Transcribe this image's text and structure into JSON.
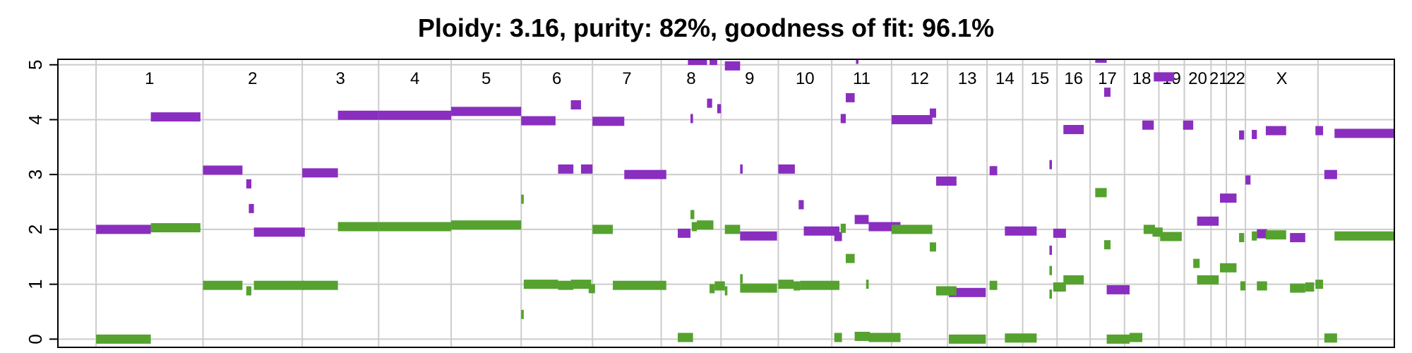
{
  "chart_data": {
    "type": "scatter",
    "title": "Ploidy: 3.16, purity: 82%, goodness of fit: 96.1%",
    "xlabel": "",
    "ylabel": "",
    "ylim": [
      -0.15,
      5.1
    ],
    "yticks": [
      "0",
      "1",
      "2",
      "3",
      "4",
      "5"
    ],
    "grid": true,
    "genome_range": [
      -3.0,
      102.0
    ],
    "chromosomes": [
      {
        "label": "1",
        "start": 0.0,
        "end": 8.4
      },
      {
        "label": "2",
        "start": 8.4,
        "end": 16.2
      },
      {
        "label": "3",
        "start": 16.2,
        "end": 22.2
      },
      {
        "label": "4",
        "start": 22.2,
        "end": 27.9
      },
      {
        "label": "5",
        "start": 27.9,
        "end": 33.4
      },
      {
        "label": "6",
        "start": 33.4,
        "end": 39.0
      },
      {
        "label": "7",
        "start": 39.0,
        "end": 44.4
      },
      {
        "label": "8",
        "start": 44.4,
        "end": 49.1
      },
      {
        "label": "9",
        "start": 49.1,
        "end": 53.6
      },
      {
        "label": "10",
        "start": 53.6,
        "end": 57.8
      },
      {
        "label": "11",
        "start": 57.8,
        "end": 62.5
      },
      {
        "label": "12",
        "start": 62.5,
        "end": 66.9
      },
      {
        "label": "13",
        "start": 66.9,
        "end": 70.0
      },
      {
        "label": "14",
        "start": 70.0,
        "end": 72.8
      },
      {
        "label": "15",
        "start": 72.8,
        "end": 75.5
      },
      {
        "label": "16",
        "start": 75.5,
        "end": 78.1
      },
      {
        "label": "17",
        "start": 78.1,
        "end": 80.8
      },
      {
        "label": "18",
        "start": 80.8,
        "end": 83.5
      },
      {
        "label": "19",
        "start": 83.5,
        "end": 85.5
      },
      {
        "label": "20",
        "start": 85.5,
        "end": 87.6
      },
      {
        "label": "21",
        "start": 87.6,
        "end": 88.8
      },
      {
        "label": "22",
        "start": 88.8,
        "end": 90.3
      },
      {
        "label": "X",
        "start": 90.3,
        "end": 96.0
      }
    ],
    "series": [
      {
        "color": "#8a2ec0",
        "segments": [
          [
            0.0,
            4.3,
            2.0
          ],
          [
            4.3,
            8.2,
            4.05
          ],
          [
            8.4,
            11.5,
            3.08
          ],
          [
            11.8,
            12.2,
            2.83
          ],
          [
            12.0,
            12.4,
            2.38
          ],
          [
            12.4,
            16.4,
            1.95
          ],
          [
            16.2,
            19.0,
            3.03
          ],
          [
            19.0,
            22.2,
            4.08
          ],
          [
            22.2,
            27.9,
            4.08
          ],
          [
            27.9,
            33.4,
            4.15
          ],
          [
            33.4,
            36.1,
            3.98
          ],
          [
            36.3,
            37.5,
            3.1
          ],
          [
            37.3,
            38.1,
            4.27
          ],
          [
            38.1,
            39.0,
            3.1
          ],
          [
            39.0,
            41.5,
            3.97
          ],
          [
            41.5,
            44.8,
            3.0
          ],
          [
            45.7,
            46.7,
            1.93
          ],
          [
            46.7,
            46.9,
            4.02
          ],
          [
            46.5,
            48.0,
            5.08
          ],
          [
            48.0,
            48.4,
            4.3
          ],
          [
            48.2,
            48.8,
            5.08
          ],
          [
            48.8,
            49.1,
            4.2
          ],
          [
            49.4,
            50.6,
            4.98
          ],
          [
            50.6,
            50.8,
            3.1
          ],
          [
            50.6,
            53.5,
            1.88
          ],
          [
            53.6,
            54.9,
            3.1
          ],
          [
            55.2,
            55.6,
            2.45
          ],
          [
            55.6,
            58.4,
            1.97
          ],
          [
            58.0,
            58.6,
            1.87
          ],
          [
            58.5,
            58.9,
            4.02
          ],
          [
            58.9,
            59.6,
            4.4
          ],
          [
            59.6,
            60.7,
            2.18
          ],
          [
            59.7,
            59.9,
            5.1
          ],
          [
            60.7,
            63.2,
            2.05
          ],
          [
            62.5,
            65.7,
            4.0
          ],
          [
            65.5,
            66.0,
            4.12
          ],
          [
            66.0,
            67.6,
            2.88
          ],
          [
            67.0,
            69.9,
            0.85
          ],
          [
            70.2,
            70.8,
            3.07
          ],
          [
            71.4,
            73.9,
            1.97
          ],
          [
            74.9,
            75.1,
            3.18
          ],
          [
            74.9,
            75.1,
            1.62
          ],
          [
            75.2,
            76.2,
            1.93
          ],
          [
            76.0,
            77.6,
            3.82
          ],
          [
            78.5,
            79.4,
            5.12
          ],
          [
            79.2,
            79.7,
            4.5
          ],
          [
            79.4,
            81.2,
            0.9
          ],
          [
            82.2,
            83.1,
            3.9
          ],
          [
            83.1,
            84.7,
            4.78
          ],
          [
            85.4,
            86.2,
            3.9
          ],
          [
            86.5,
            88.2,
            2.15
          ],
          [
            88.3,
            89.6,
            2.57
          ],
          [
            89.8,
            90.2,
            3.72
          ],
          [
            90.3,
            90.7,
            2.9
          ],
          [
            90.8,
            91.2,
            3.73
          ],
          [
            91.2,
            92.0,
            1.92
          ],
          [
            91.9,
            93.5,
            3.8
          ],
          [
            93.8,
            95.0,
            1.85
          ],
          [
            95.8,
            96.4,
            3.8
          ],
          [
            96.5,
            97.5,
            3.0
          ],
          [
            97.3,
            102.0,
            3.75
          ]
        ]
      },
      {
        "color": "#55a22e",
        "segments": [
          [
            0.0,
            4.3,
            0.0
          ],
          [
            4.3,
            8.2,
            2.03
          ],
          [
            8.4,
            11.5,
            0.98
          ],
          [
            11.8,
            12.2,
            0.88
          ],
          [
            12.4,
            16.4,
            0.98
          ],
          [
            16.2,
            19.0,
            0.98
          ],
          [
            19.0,
            22.2,
            2.05
          ],
          [
            22.2,
            27.9,
            2.05
          ],
          [
            27.9,
            33.4,
            2.08
          ],
          [
            33.4,
            33.6,
            2.55
          ],
          [
            33.4,
            33.6,
            0.45
          ],
          [
            33.6,
            36.3,
            1.0
          ],
          [
            36.3,
            37.5,
            0.98
          ],
          [
            37.3,
            38.9,
            1.0
          ],
          [
            38.7,
            39.2,
            0.92
          ],
          [
            39.0,
            40.6,
            2.0
          ],
          [
            40.6,
            44.8,
            0.98
          ],
          [
            45.7,
            46.9,
            0.03
          ],
          [
            46.7,
            47.0,
            2.27
          ],
          [
            46.8,
            47.2,
            2.05
          ],
          [
            47.2,
            48.5,
            2.08
          ],
          [
            48.2,
            48.6,
            0.92
          ],
          [
            48.6,
            49.4,
            0.97
          ],
          [
            49.4,
            49.6,
            0.88
          ],
          [
            49.4,
            50.6,
            2.0
          ],
          [
            50.6,
            50.8,
            1.1
          ],
          [
            50.6,
            53.5,
            0.93
          ],
          [
            53.6,
            54.8,
            1.0
          ],
          [
            54.8,
            55.3,
            0.97
          ],
          [
            55.3,
            58.4,
            0.98
          ],
          [
            58.0,
            58.6,
            0.03
          ],
          [
            58.5,
            58.9,
            2.02
          ],
          [
            58.9,
            59.6,
            1.47
          ],
          [
            59.6,
            60.8,
            0.05
          ],
          [
            60.5,
            60.7,
            1.0
          ],
          [
            60.7,
            63.2,
            0.03
          ],
          [
            62.5,
            65.7,
            2.0
          ],
          [
            65.5,
            66.0,
            1.68
          ],
          [
            66.0,
            67.6,
            0.88
          ],
          [
            67.0,
            69.9,
            0.0
          ],
          [
            70.2,
            70.8,
            0.98
          ],
          [
            71.4,
            73.9,
            0.02
          ],
          [
            74.9,
            75.1,
            0.82
          ],
          [
            74.9,
            75.1,
            1.25
          ],
          [
            75.2,
            76.2,
            0.95
          ],
          [
            76.0,
            77.6,
            1.08
          ],
          [
            78.5,
            79.4,
            2.67
          ],
          [
            79.2,
            79.7,
            1.72
          ],
          [
            79.4,
            81.2,
            0.0
          ],
          [
            81.2,
            82.2,
            0.03
          ],
          [
            82.3,
            83.2,
            2.0
          ],
          [
            83.0,
            83.8,
            1.95
          ],
          [
            83.6,
            85.3,
            1.87
          ],
          [
            86.2,
            86.7,
            1.38
          ],
          [
            86.5,
            88.2,
            1.08
          ],
          [
            88.3,
            89.6,
            1.3
          ],
          [
            89.9,
            90.3,
            0.97
          ],
          [
            89.8,
            90.2,
            1.85
          ],
          [
            90.8,
            91.2,
            1.88
          ],
          [
            91.2,
            92.0,
            0.97
          ],
          [
            91.9,
            93.5,
            1.9
          ],
          [
            93.8,
            95.0,
            0.93
          ],
          [
            95.0,
            95.7,
            0.95
          ],
          [
            95.8,
            96.4,
            1.0
          ],
          [
            96.5,
            97.5,
            0.02
          ],
          [
            97.3,
            102.0,
            1.88
          ]
        ]
      }
    ]
  }
}
